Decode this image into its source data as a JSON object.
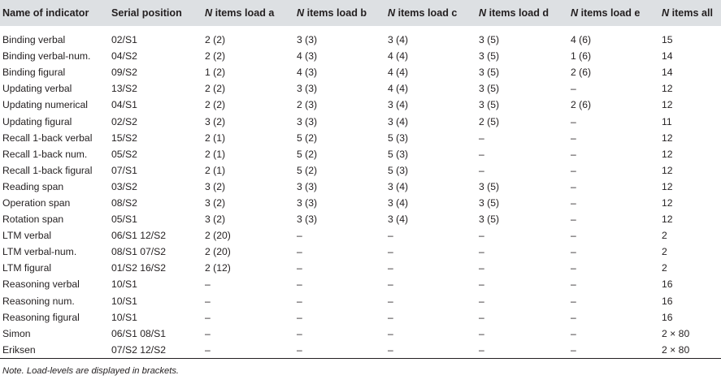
{
  "table": {
    "headers": [
      {
        "prefix": "",
        "label": "Name of indicator"
      },
      {
        "prefix": "",
        "label": "Serial position"
      },
      {
        "prefix": "N",
        "label": " items load a"
      },
      {
        "prefix": "N",
        "label": " items load b"
      },
      {
        "prefix": "N",
        "label": " items load c"
      },
      {
        "prefix": "N",
        "label": " items load d"
      },
      {
        "prefix": "N",
        "label": " items load e"
      },
      {
        "prefix": "N",
        "label": " items all"
      }
    ],
    "rows": [
      [
        "Binding verbal",
        "02/S1",
        "2 (2)",
        "3 (3)",
        "3 (4)",
        "3 (5)",
        "4 (6)",
        "15"
      ],
      [
        "Binding verbal-num.",
        "04/S2",
        "2 (2)",
        "4 (3)",
        "4 (4)",
        "3 (5)",
        "1 (6)",
        "14"
      ],
      [
        "Binding figural",
        "09/S2",
        "1 (2)",
        "4 (3)",
        "4 (4)",
        "3 (5)",
        "2 (6)",
        "14"
      ],
      [
        "Updating verbal",
        "13/S2",
        "2 (2)",
        "3 (3)",
        "4 (4)",
        "3 (5)",
        "–",
        "12"
      ],
      [
        "Updating numerical",
        "04/S1",
        "2 (2)",
        "2 (3)",
        "3 (4)",
        "3 (5)",
        "2 (6)",
        "12"
      ],
      [
        "Updating figural",
        "02/S2",
        "3 (2)",
        "3 (3)",
        "3 (4)",
        "2 (5)",
        "–",
        "11"
      ],
      [
        "Recall 1-back verbal",
        "15/S2",
        "2 (1)",
        "5 (2)",
        "5 (3)",
        "–",
        "–",
        "12"
      ],
      [
        "Recall 1-back num.",
        "05/S2",
        "2 (1)",
        "5 (2)",
        "5 (3)",
        "–",
        "–",
        "12"
      ],
      [
        "Recall 1-back figural",
        "07/S1",
        "2 (1)",
        "5 (2)",
        "5 (3)",
        "–",
        "–",
        "12"
      ],
      [
        "Reading span",
        "03/S2",
        "3 (2)",
        "3 (3)",
        "3 (4)",
        "3 (5)",
        "–",
        "12"
      ],
      [
        "Operation span",
        "08/S2",
        "3 (2)",
        "3 (3)",
        "3 (4)",
        "3 (5)",
        "–",
        "12"
      ],
      [
        "Rotation span",
        "05/S1",
        "3 (2)",
        "3 (3)",
        "3 (4)",
        "3 (5)",
        "–",
        "12"
      ],
      [
        "LTM verbal",
        "06/S1 12/S2",
        "2 (20)",
        "–",
        "–",
        "–",
        "–",
        "2"
      ],
      [
        "LTM verbal-num.",
        "08/S1 07/S2",
        "2 (20)",
        "–",
        "–",
        "–",
        "–",
        "2"
      ],
      [
        "LTM figural",
        "01/S2 16/S2",
        "2 (12)",
        "–",
        "–",
        "–",
        "–",
        "2"
      ],
      [
        "Reasoning verbal",
        "10/S1",
        "–",
        "–",
        "–",
        "–",
        "–",
        "16"
      ],
      [
        "Reasoning num.",
        "10/S1",
        "–",
        "–",
        "–",
        "–",
        "–",
        "16"
      ],
      [
        "Reasoning figural",
        "10/S1",
        "–",
        "–",
        "–",
        "–",
        "–",
        "16"
      ],
      [
        "Simon",
        "06/S1 08/S1",
        "–",
        "–",
        "–",
        "–",
        "–",
        "2 × 80"
      ],
      [
        "Eriksen",
        "07/S2 12/S2",
        "–",
        "–",
        "–",
        "–",
        "–",
        "2 × 80"
      ]
    ]
  },
  "note": "Note. Load-levels are displayed in brackets."
}
